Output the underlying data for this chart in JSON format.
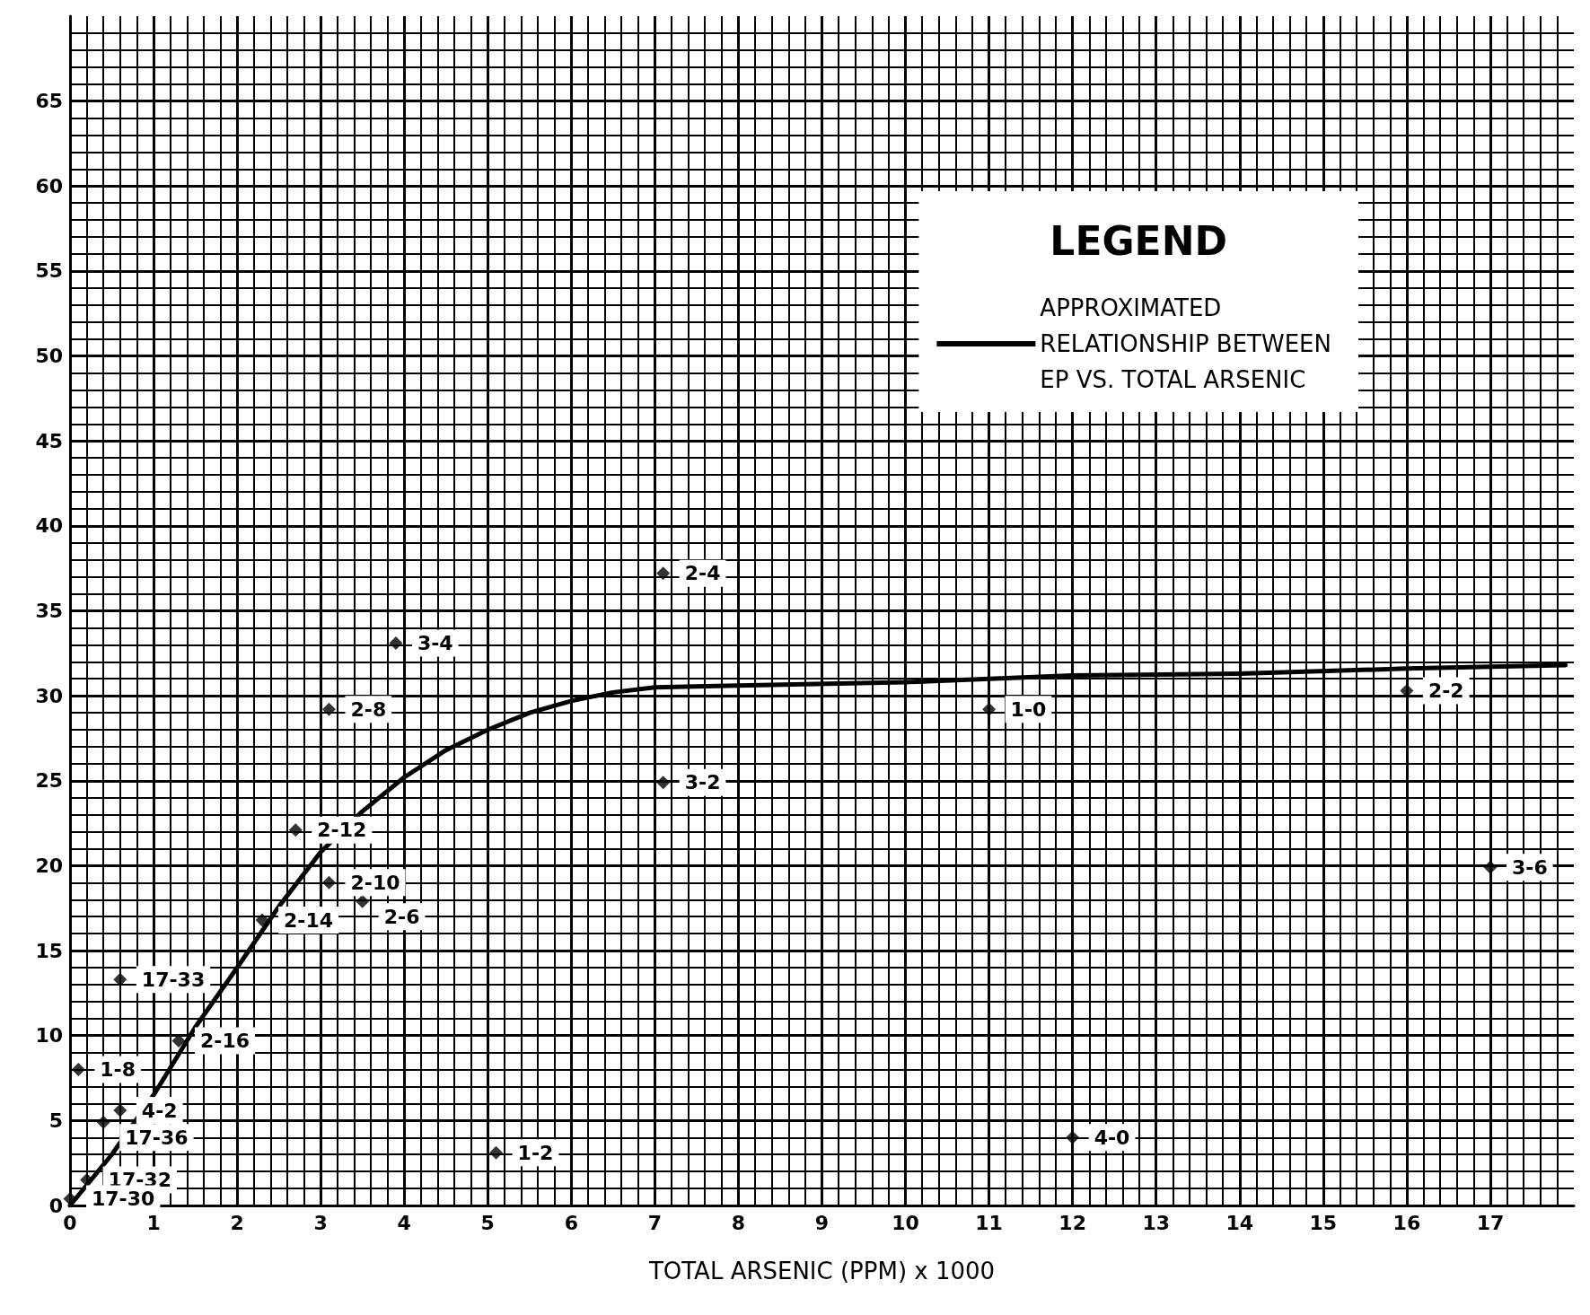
{
  "chart_data": {
    "type": "scatter",
    "xlabel": "TOTAL ARSENIC (PPM) x 1000",
    "legend_title": "LEGEND",
    "legend": "top right",
    "grid": true,
    "marker": "diamond",
    "xlim": [
      0,
      18
    ],
    "ylim": [
      0,
      70
    ],
    "xticks": [
      0,
      1,
      2,
      3,
      4,
      5,
      6,
      7,
      8,
      9,
      10,
      11,
      12,
      13,
      14,
      15,
      16,
      17
    ],
    "yticks": [
      0,
      5,
      10,
      15,
      20,
      25,
      30,
      35,
      40,
      45,
      50,
      55,
      60,
      65
    ],
    "series": [
      {
        "type": "line",
        "name": "APPROXIMATED\nRELATIONSHIP BETWEEN\nEP VS. TOTAL ARSENIC",
        "color": "#000000",
        "marker": "none",
        "line_style": "solid",
        "x": [
          0,
          0.5,
          1,
          1.5,
          2,
          2.5,
          3,
          3.5,
          4,
          4.5,
          5,
          5.5,
          6,
          6.5,
          7,
          8,
          10,
          12,
          14,
          16,
          17.9
        ],
        "values": [
          0,
          3,
          6.5,
          10.5,
          14,
          17.6,
          20.8,
          23.2,
          25.2,
          26.8,
          28,
          29,
          29.7,
          30.2,
          30.5,
          30.6,
          30.8,
          31.2,
          31.3,
          31.6,
          31.8
        ]
      },
      {
        "color": "#000000",
        "x": [
          7.1,
          3.9,
          3.1,
          11,
          16,
          7.1,
          2.7,
          3.1,
          3.5,
          2.3,
          17,
          0.6,
          1.3,
          0.1,
          0.6,
          0.4,
          0.2,
          0,
          5.1,
          12
        ],
        "values": [
          37.2,
          33.1,
          29.2,
          29.2,
          30.3,
          24.9,
          22.1,
          19,
          17.9,
          16.8,
          19.9,
          13.3,
          9.7,
          8,
          5.6,
          4.9,
          1.5,
          0.4,
          3.1,
          4
        ]
      }
    ],
    "annotations": [
      {
        "text": "2-4",
        "x": 7.1,
        "y": 37.2
      },
      {
        "text": "3-4",
        "x": 3.9,
        "y": 33.1
      },
      {
        "text": "2-8",
        "x": 3.1,
        "y": 29.2
      },
      {
        "text": "1-0",
        "x": 11,
        "y": 29.2
      },
      {
        "text": "2-2",
        "x": 16,
        "y": 30.3
      },
      {
        "text": "3-2",
        "x": 7.1,
        "y": 24.9
      },
      {
        "text": "2-12",
        "x": 2.7,
        "y": 22.1
      },
      {
        "text": "2-10",
        "x": 3.1,
        "y": 19
      },
      {
        "text": "2-6",
        "x": 3.5,
        "y": 17.9
      },
      {
        "text": "2-14",
        "x": 2.3,
        "y": 16.8
      },
      {
        "text": "3-6",
        "x": 17,
        "y": 19.9
      },
      {
        "text": "17-33",
        "x": 0.6,
        "y": 13.3
      },
      {
        "text": "2-16",
        "x": 1.3,
        "y": 9.7
      },
      {
        "text": "1-8",
        "x": 0.1,
        "y": 8
      },
      {
        "text": "4-2",
        "x": 0.6,
        "y": 5.6
      },
      {
        "text": "17-36",
        "x": 0.4,
        "y": 4.9
      },
      {
        "text": "17-32",
        "x": 0.2,
        "y": 1.5
      },
      {
        "text": "17-30",
        "x": 0,
        "y": 0.4
      },
      {
        "text": "1-2",
        "x": 5.1,
        "y": 3.1
      },
      {
        "text": "4-0",
        "x": 12,
        "y": 4
      }
    ]
  }
}
